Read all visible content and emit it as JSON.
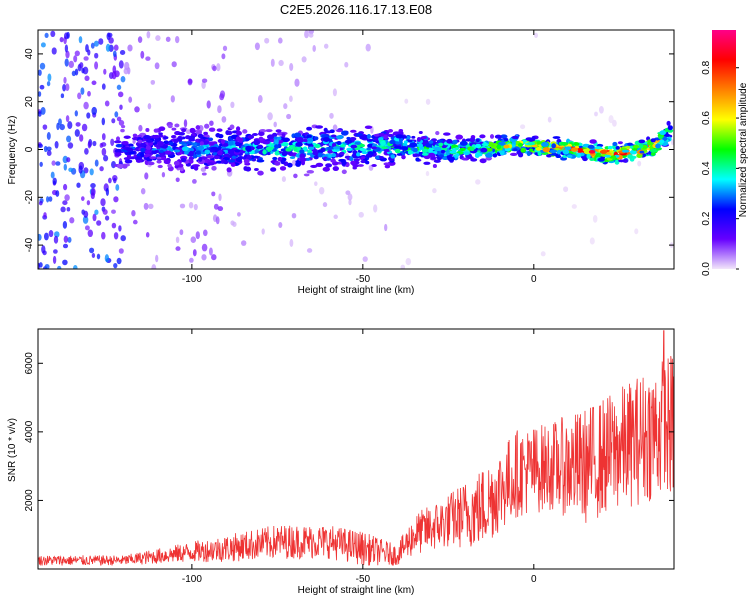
{
  "title": "C2E5.2026.116.17.13.E08",
  "chart_data": [
    {
      "type": "heatmap",
      "xlabel": "Height of straight line (km)",
      "ylabel": "Frequency (Hz)",
      "xlim": [
        -145,
        41
      ],
      "ylim": [
        -50,
        50
      ],
      "xticks": [
        -100,
        -50,
        0
      ],
      "yticks": [
        -40,
        -20,
        0,
        20,
        40
      ],
      "ridge": [
        {
          "x": -122,
          "freq": 0,
          "halfwidth": 8,
          "amp": 0.3
        },
        {
          "x": -100,
          "freq": 0,
          "halfwidth": 10,
          "amp": 0.35
        },
        {
          "x": -80,
          "freq": 0,
          "halfwidth": 9,
          "amp": 0.45
        },
        {
          "x": -60,
          "freq": 1,
          "halfwidth": 9,
          "amp": 0.45
        },
        {
          "x": -40,
          "freq": 1,
          "halfwidth": 7,
          "amp": 0.5
        },
        {
          "x": -20,
          "freq": 0,
          "halfwidth": 5,
          "amp": 0.55
        },
        {
          "x": -5,
          "freq": 2,
          "halfwidth": 4,
          "amp": 0.75
        },
        {
          "x": 10,
          "freq": 0,
          "halfwidth": 4,
          "amp": 0.9
        },
        {
          "x": 25,
          "freq": -2,
          "halfwidth": 4,
          "amp": 0.9
        },
        {
          "x": 35,
          "freq": 1,
          "halfwidth": 4,
          "amp": 0.9
        },
        {
          "x": 40,
          "freq": 8,
          "halfwidth": 5,
          "amp": 0.6
        }
      ],
      "colorbar": {
        "label": "Normalized spectral amplitude",
        "ticks": [
          "0.0",
          "0.2",
          "0.4",
          "0.6",
          "0.8"
        ],
        "range": [
          0,
          0.95
        ],
        "stops": [
          "#f2e6fa",
          "#6600ff",
          "#0000ff",
          "#00ffff",
          "#00ff00",
          "#ffff00",
          "#ff8000",
          "#ff0000",
          "#ff0088"
        ]
      }
    },
    {
      "type": "line",
      "xlabel": "Height of straight line (km)",
      "ylabel": "SNR (10 * v/v)",
      "xlim": [
        -145,
        41
      ],
      "ylim": [
        0,
        7000
      ],
      "xticks": [
        -100,
        -50,
        0
      ],
      "yticks": [
        2000,
        4000,
        6000
      ],
      "color": "#ee3333",
      "envelope": [
        {
          "x": -145,
          "mean": 250,
          "amp": 150
        },
        {
          "x": -120,
          "mean": 250,
          "amp": 150
        },
        {
          "x": -100,
          "mean": 500,
          "amp": 300
        },
        {
          "x": -90,
          "mean": 600,
          "amp": 400
        },
        {
          "x": -75,
          "mean": 800,
          "amp": 500
        },
        {
          "x": -60,
          "mean": 800,
          "amp": 500
        },
        {
          "x": -50,
          "mean": 600,
          "amp": 500
        },
        {
          "x": -40,
          "mean": 400,
          "amp": 300
        },
        {
          "x": -35,
          "mean": 1000,
          "amp": 600
        },
        {
          "x": -25,
          "mean": 1400,
          "amp": 800
        },
        {
          "x": -15,
          "mean": 1800,
          "amp": 1200
        },
        {
          "x": -5,
          "mean": 2800,
          "amp": 1300
        },
        {
          "x": 5,
          "mean": 3000,
          "amp": 1300
        },
        {
          "x": 15,
          "mean": 3000,
          "amp": 1700
        },
        {
          "x": 25,
          "mean": 3500,
          "amp": 1800
        },
        {
          "x": 35,
          "mean": 4000,
          "amp": 2000
        },
        {
          "x": 41,
          "mean": 4200,
          "amp": 2200
        }
      ],
      "peak": {
        "x": 38,
        "y": 6950
      }
    }
  ]
}
